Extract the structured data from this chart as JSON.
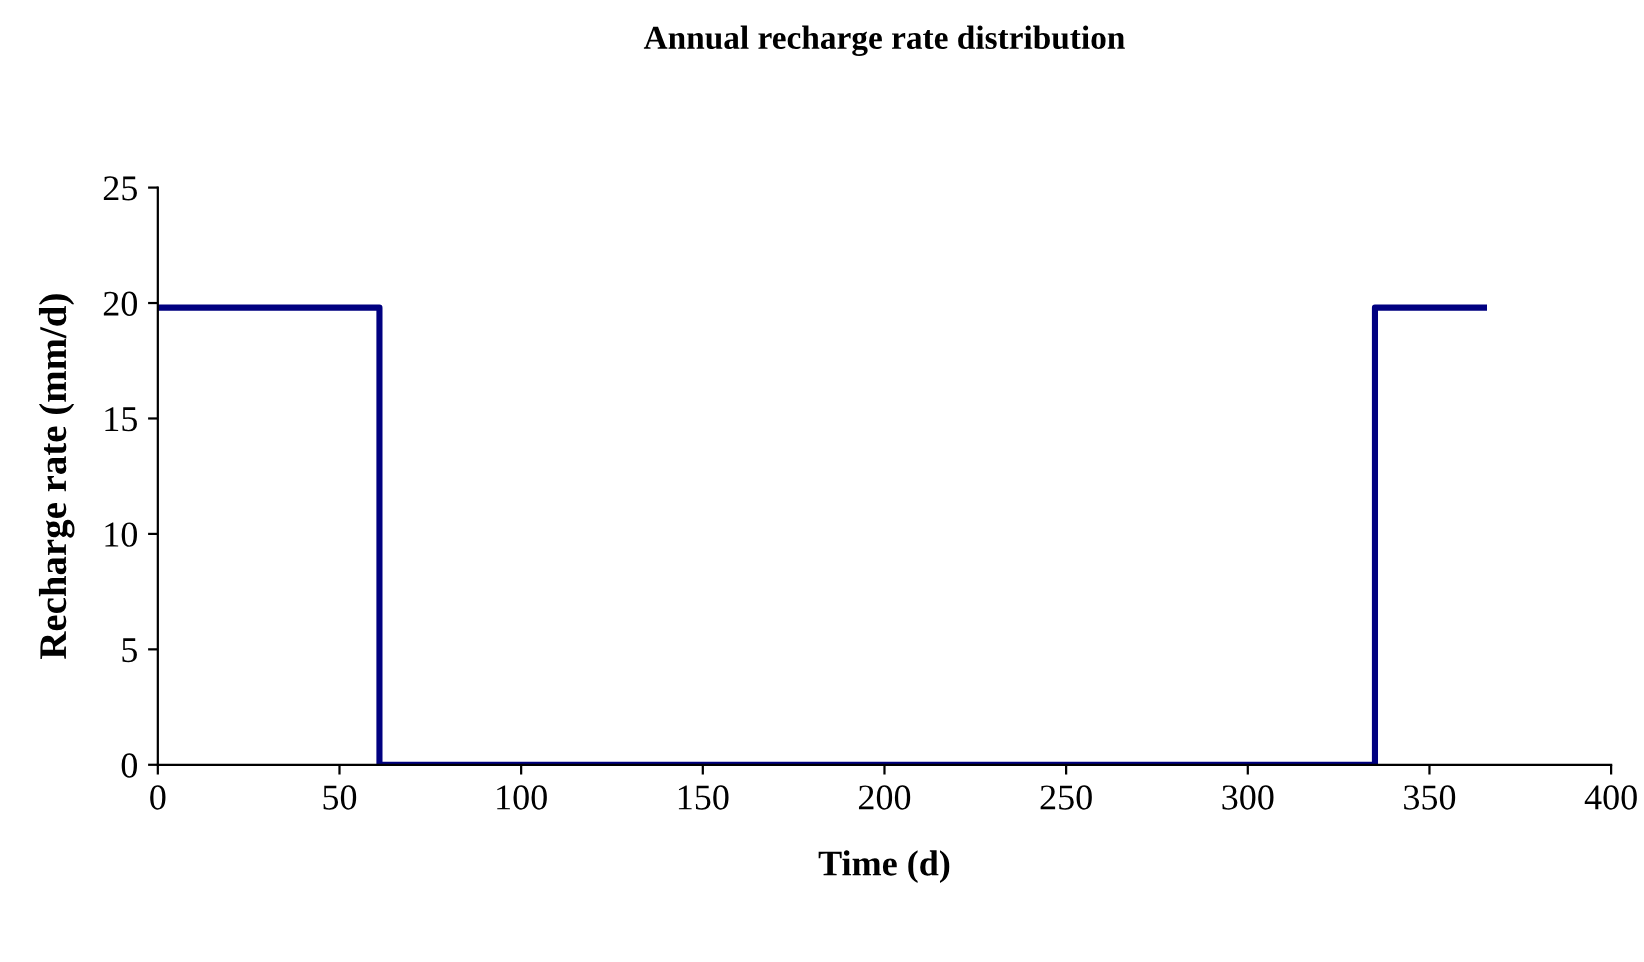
{
  "chart_data": {
    "type": "step",
    "title": "Annual recharge rate distribution",
    "xlabel": "Time (d)",
    "ylabel": "Recharge rate (mm/d)",
    "x": [
      0,
      61,
      335,
      365
    ],
    "series": [
      {
        "color": "#000080",
        "values": [
          19.8,
          0,
          19.8,
          19.8
        ]
      }
    ],
    "xlim": [
      0,
      400
    ],
    "xticks": [
      0,
      50,
      100,
      150,
      200,
      250,
      300,
      350,
      400
    ],
    "ylim": [
      0,
      25
    ],
    "yticks": [
      0,
      5,
      10,
      15,
      20,
      25
    ],
    "grid": false,
    "legend": false
  }
}
